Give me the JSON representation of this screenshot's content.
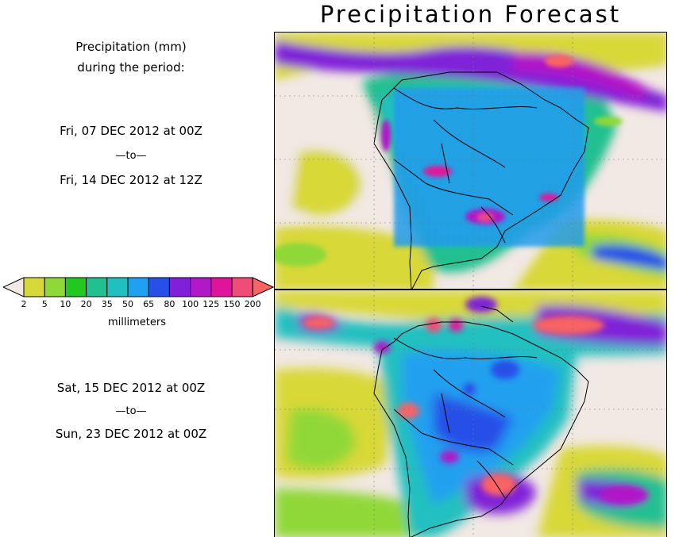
{
  "title": "Precipitation Forecast",
  "left_panel": {
    "header_line1": "Precipitation (mm)",
    "header_line2": "during the period:",
    "period1": {
      "start": "Fri, 07 DEC 2012 at 00Z",
      "sep": "—to—",
      "end": "Fri, 14 DEC 2012 at 12Z"
    },
    "period2": {
      "start": "Sat, 15 DEC 2012 at 00Z",
      "sep": "—to—",
      "end": "Sun, 23 DEC 2012 at 00Z"
    }
  },
  "legend": {
    "units": "millimeters",
    "ticks": [
      "2",
      "5",
      "10",
      "20",
      "35",
      "50",
      "65",
      "80",
      "100",
      "125",
      "150",
      "200"
    ],
    "colors": [
      "#f2e8e4",
      "#d8d838",
      "#90d838",
      "#20c820",
      "#20c090",
      "#20c0c0",
      "#20a0f0",
      "#2850e8",
      "#8020d8",
      "#b018c8",
      "#e0149a",
      "#f04c78",
      "#f86464"
    ]
  },
  "maps": [
    {
      "name": "period-1-map"
    },
    {
      "name": "period-2-map"
    }
  ]
}
